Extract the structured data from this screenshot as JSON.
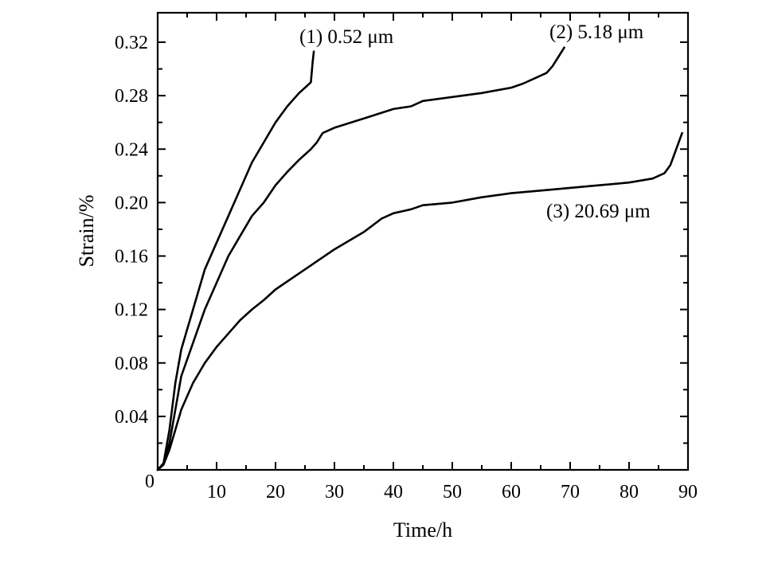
{
  "chart_data": {
    "type": "line",
    "xlabel": "Time/h",
    "ylabel": "Strain/%",
    "xlim": [
      0,
      90
    ],
    "ylim": [
      0,
      0.33
    ],
    "x_ticks": [
      0,
      10,
      20,
      30,
      40,
      50,
      60,
      70,
      80,
      90
    ],
    "x_tick_labels": [
      "0",
      "10",
      "20",
      "30",
      "40",
      "50",
      "60",
      "70",
      "80",
      "90"
    ],
    "y_ticks": [
      0.04,
      0.08,
      0.12,
      0.16,
      0.2,
      0.24,
      0.28,
      0.32
    ],
    "y_tick_labels": [
      "0.04",
      "0.08",
      "0.12",
      "0.16",
      "0.20",
      "0.24",
      "0.28",
      "0.32"
    ],
    "grid": false,
    "legend": "none",
    "series": [
      {
        "name": "(1) 0.52 μm",
        "label": "(1) 0.52 μm",
        "x": [
          0,
          1,
          2,
          3,
          4,
          5,
          6,
          8,
          10,
          12,
          14,
          16,
          18,
          20,
          22,
          24,
          25,
          26,
          26.3,
          26.5
        ],
        "y": [
          0,
          0.005,
          0.03,
          0.065,
          0.09,
          0.105,
          0.12,
          0.15,
          0.17,
          0.19,
          0.21,
          0.23,
          0.245,
          0.26,
          0.272,
          0.282,
          0.286,
          0.29,
          0.305,
          0.313
        ]
      },
      {
        "name": "(2) 5.18 μm",
        "label": "(2) 5.18 μm",
        "x": [
          0,
          1,
          2,
          3,
          4,
          6,
          8,
          10,
          12,
          14,
          16,
          18,
          20,
          22,
          24,
          26,
          27,
          28,
          30,
          35,
          40,
          43,
          45,
          50,
          55,
          60,
          62,
          64,
          66,
          67,
          68,
          69
        ],
        "y": [
          0,
          0.004,
          0.02,
          0.045,
          0.07,
          0.095,
          0.12,
          0.14,
          0.16,
          0.175,
          0.19,
          0.2,
          0.213,
          0.223,
          0.232,
          0.24,
          0.245,
          0.252,
          0.256,
          0.263,
          0.27,
          0.272,
          0.276,
          0.279,
          0.282,
          0.286,
          0.289,
          0.293,
          0.297,
          0.302,
          0.309,
          0.316
        ]
      },
      {
        "name": "(3) 20.69 μm",
        "label": "(3) 20.69 μm",
        "x": [
          0,
          1,
          2,
          3,
          4,
          6,
          8,
          10,
          12,
          14,
          16,
          18,
          20,
          25,
          30,
          35,
          38,
          40,
          43,
          45,
          50,
          55,
          60,
          65,
          70,
          75,
          80,
          84,
          86,
          87,
          88,
          89
        ],
        "y": [
          0,
          0.004,
          0.015,
          0.03,
          0.045,
          0.065,
          0.08,
          0.092,
          0.102,
          0.112,
          0.12,
          0.127,
          0.135,
          0.15,
          0.165,
          0.178,
          0.188,
          0.192,
          0.195,
          0.198,
          0.2,
          0.204,
          0.207,
          0.209,
          0.211,
          0.213,
          0.215,
          0.218,
          0.222,
          0.228,
          0.24,
          0.252
        ]
      }
    ]
  }
}
